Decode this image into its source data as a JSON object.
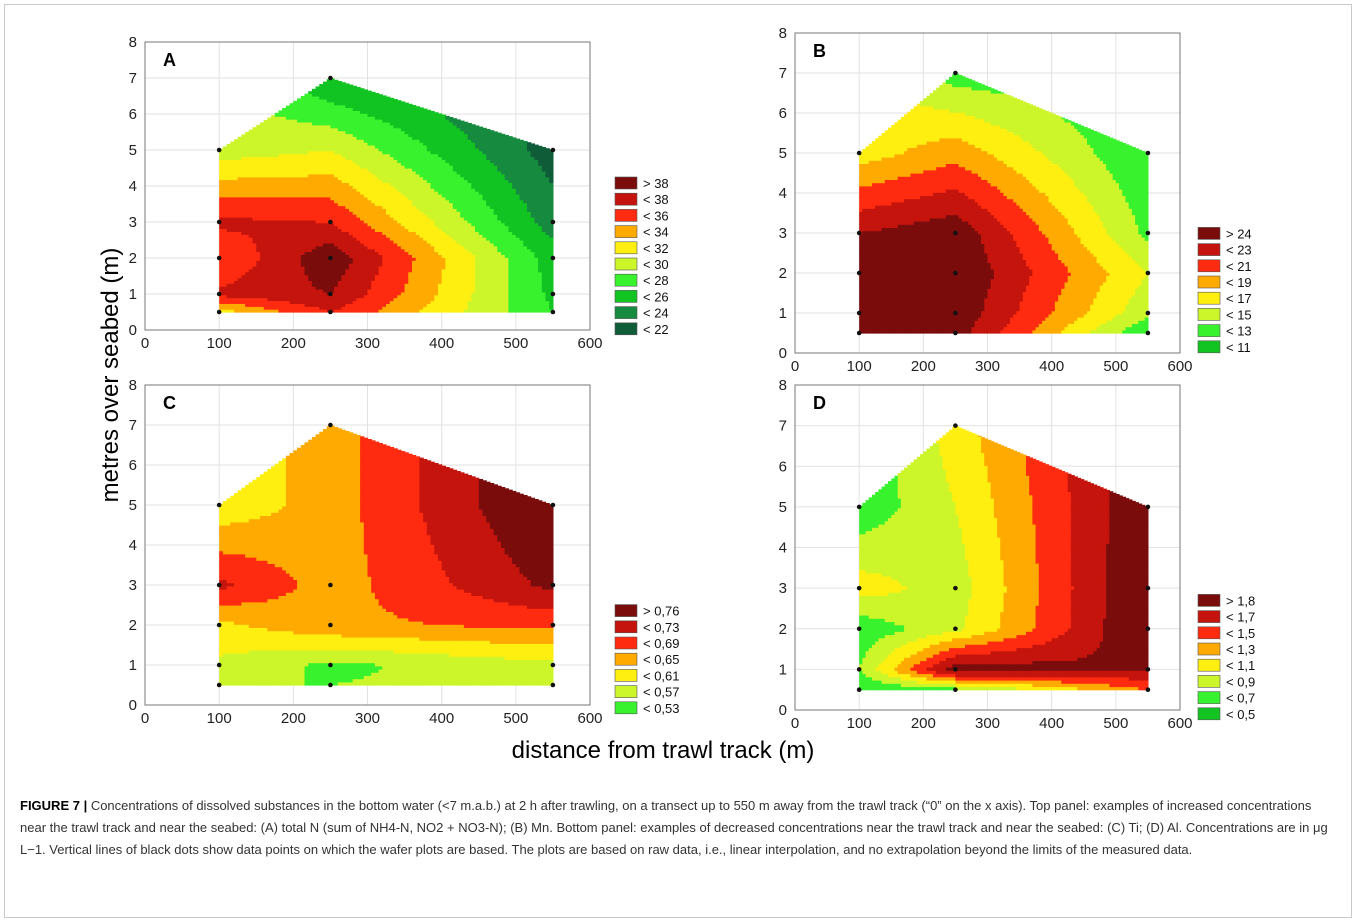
{
  "caption": {
    "label": "FIGURE 7 |",
    "text": " Concentrations of dissolved substances in the bottom water (<7 m.a.b.) at 2 h after trawling, on a transect up to 550 m away from the trawl track (“0” on the x axis). Top panel: examples of increased concentrations near the trawl track and near the seabed: (A) total N (sum of NH4-N, NO2 + NO3-N); (B) Mn. Bottom panel: examples of decreased concentrations near the trawl track and near the seabed: (C) Ti; (D) Al. Concentrations are in μg L−1. Vertical lines of black dots show data points on which the wafer plots are based. The plots are based on raw data, i.e., linear interpolation, and no extrapolation beyond the limits of the measured data."
  },
  "colors": [
    "#0f5c38",
    "#168a3e",
    "#12c422",
    "#38f22e",
    "#ccf52a",
    "#ffef10",
    "#ffaa00",
    "#ff2b10",
    "#c4140d",
    "#7a0c0c"
  ],
  "chart_data": [
    {
      "type": "heatmap",
      "panel": "A",
      "xlabel": "distance from trawl track (m)",
      "ylabel": "metres over seabed (m)",
      "xlim": [
        0,
        600
      ],
      "ylim": [
        0,
        8
      ],
      "xticks": [
        "0",
        "100",
        "200",
        "300",
        "400",
        "500",
        "600"
      ],
      "yticks": [
        "0",
        "1",
        "2",
        "3",
        "4",
        "5",
        "6",
        "7",
        "8"
      ],
      "grid": true,
      "legend": [
        "> 38",
        "< 38",
        "< 36",
        "< 34",
        "< 32",
        "< 30",
        "< 28",
        "< 26",
        "< 24",
        "< 22"
      ],
      "data_points": [
        [
          100,
          0.5
        ],
        [
          100,
          1
        ],
        [
          100,
          2
        ],
        [
          100,
          3
        ],
        [
          100,
          5
        ],
        [
          250,
          0.5
        ],
        [
          250,
          1
        ],
        [
          250,
          2
        ],
        [
          250,
          3
        ],
        [
          250,
          7
        ],
        [
          550,
          0.5
        ],
        [
          550,
          1
        ],
        [
          550,
          2
        ],
        [
          550,
          3
        ],
        [
          550,
          5
        ]
      ],
      "values": [
        [
          100,
          0.5,
          31
        ],
        [
          100,
          1,
          36.5
        ],
        [
          100,
          2,
          34
        ],
        [
          100,
          3,
          36.5
        ],
        [
          100,
          5,
          29
        ],
        [
          250,
          0.5,
          36
        ],
        [
          250,
          1,
          38
        ],
        [
          250,
          2,
          39.5
        ],
        [
          250,
          3,
          36
        ],
        [
          250,
          7,
          24
        ],
        [
          550,
          0.5,
          26
        ],
        [
          550,
          1,
          25.5
        ],
        [
          550,
          2,
          25
        ],
        [
          550,
          3,
          23
        ],
        [
          550,
          5,
          21
        ]
      ]
    },
    {
      "type": "heatmap",
      "panel": "B",
      "xlim": [
        0,
        600
      ],
      "ylim": [
        0,
        8
      ],
      "xticks": [
        "0",
        "100",
        "200",
        "300",
        "400",
        "500",
        "600"
      ],
      "yticks": [
        "0",
        "1",
        "2",
        "3",
        "4",
        "5",
        "6",
        "7",
        "8"
      ],
      "grid": true,
      "legend": [
        "> 24",
        "< 23",
        "< 21",
        "< 19",
        "< 17",
        "< 15",
        "< 13",
        "< 11"
      ],
      "data_points": [
        [
          100,
          0.5
        ],
        [
          100,
          1
        ],
        [
          100,
          2
        ],
        [
          100,
          3
        ],
        [
          100,
          5
        ],
        [
          250,
          0.5
        ],
        [
          250,
          1
        ],
        [
          250,
          2
        ],
        [
          250,
          3
        ],
        [
          250,
          7
        ],
        [
          550,
          0.5
        ],
        [
          550,
          1
        ],
        [
          550,
          2
        ],
        [
          550,
          3
        ],
        [
          550,
          5
        ]
      ],
      "values": [
        [
          100,
          0.5,
          24
        ],
        [
          100,
          1,
          24
        ],
        [
          100,
          2,
          23.5
        ],
        [
          100,
          3,
          23
        ],
        [
          100,
          5,
          16
        ],
        [
          250,
          0.5,
          24
        ],
        [
          250,
          1,
          24.5
        ],
        [
          250,
          2,
          25
        ],
        [
          250,
          3,
          24.5
        ],
        [
          250,
          7,
          12
        ],
        [
          550,
          0.5,
          11
        ],
        [
          550,
          1,
          13.5
        ],
        [
          550,
          2,
          15
        ],
        [
          550,
          3,
          12.5
        ],
        [
          550,
          5,
          11
        ]
      ]
    },
    {
      "type": "heatmap",
      "panel": "C",
      "xlim": [
        0,
        600
      ],
      "ylim": [
        0,
        8
      ],
      "xticks": [
        "0",
        "100",
        "200",
        "300",
        "400",
        "500",
        "600"
      ],
      "yticks": [
        "0",
        "1",
        "2",
        "3",
        "4",
        "5",
        "6",
        "7",
        "8"
      ],
      "grid": true,
      "legend": [
        "> 0,76",
        "< 0,73",
        "< 0,69",
        "< 0,65",
        "< 0,61",
        "< 0,57",
        "< 0,53"
      ],
      "data_points": [
        [
          100,
          0.5
        ],
        [
          100,
          1
        ],
        [
          100,
          2
        ],
        [
          100,
          3
        ],
        [
          100,
          5
        ],
        [
          250,
          0.5
        ],
        [
          250,
          1
        ],
        [
          250,
          2
        ],
        [
          250,
          3
        ],
        [
          250,
          7
        ],
        [
          550,
          0.5
        ],
        [
          550,
          1
        ],
        [
          550,
          2
        ],
        [
          550,
          3
        ],
        [
          550,
          5
        ]
      ],
      "values": [
        [
          100,
          0.5,
          0.53
        ],
        [
          100,
          1,
          0.56
        ],
        [
          100,
          2,
          0.6
        ],
        [
          100,
          3,
          0.7
        ],
        [
          100,
          5,
          0.58
        ],
        [
          250,
          0.5,
          0.53
        ],
        [
          250,
          1,
          0.52
        ],
        [
          250,
          2,
          0.64
        ],
        [
          250,
          3,
          0.63
        ],
        [
          250,
          7,
          0.63
        ],
        [
          550,
          0.5,
          0.55
        ],
        [
          550,
          1,
          0.56
        ],
        [
          550,
          2,
          0.66
        ],
        [
          550,
          3,
          0.74
        ],
        [
          550,
          5,
          0.78
        ]
      ]
    },
    {
      "type": "heatmap",
      "panel": "D",
      "xlim": [
        0,
        600
      ],
      "ylim": [
        0,
        8
      ],
      "xticks": [
        "0",
        "100",
        "200",
        "300",
        "400",
        "500",
        "600"
      ],
      "yticks": [
        "0",
        "1",
        "2",
        "3",
        "4",
        "5",
        "6",
        "7",
        "8"
      ],
      "grid": true,
      "legend": [
        "> 1,8",
        "< 1,7",
        "< 1,5",
        "< 1,3",
        "< 1,1",
        "< 0,9",
        "< 0,7",
        "< 0,5"
      ],
      "data_points": [
        [
          100,
          0.5
        ],
        [
          100,
          1
        ],
        [
          100,
          2
        ],
        [
          100,
          3
        ],
        [
          100,
          5
        ],
        [
          250,
          0.5
        ],
        [
          250,
          1
        ],
        [
          250,
          2
        ],
        [
          250,
          3
        ],
        [
          250,
          7
        ],
        [
          550,
          0.5
        ],
        [
          550,
          1
        ],
        [
          550,
          2
        ],
        [
          550,
          3
        ],
        [
          550,
          5
        ]
      ],
      "values": [
        [
          100,
          0.5,
          0.5
        ],
        [
          100,
          1,
          0.7
        ],
        [
          100,
          2,
          0.55
        ],
        [
          100,
          3,
          1.0
        ],
        [
          100,
          5,
          0.55
        ],
        [
          250,
          0.5,
          0.6
        ],
        [
          250,
          1,
          1.85
        ],
        [
          250,
          2,
          0.85
        ],
        [
          250,
          3,
          0.8
        ],
        [
          250,
          7,
          1.0
        ],
        [
          550,
          0.5,
          1.3
        ],
        [
          550,
          1,
          1.7
        ],
        [
          550,
          2,
          1.95
        ],
        [
          550,
          3,
          1.95
        ],
        [
          550,
          5,
          1.9
        ]
      ]
    }
  ]
}
